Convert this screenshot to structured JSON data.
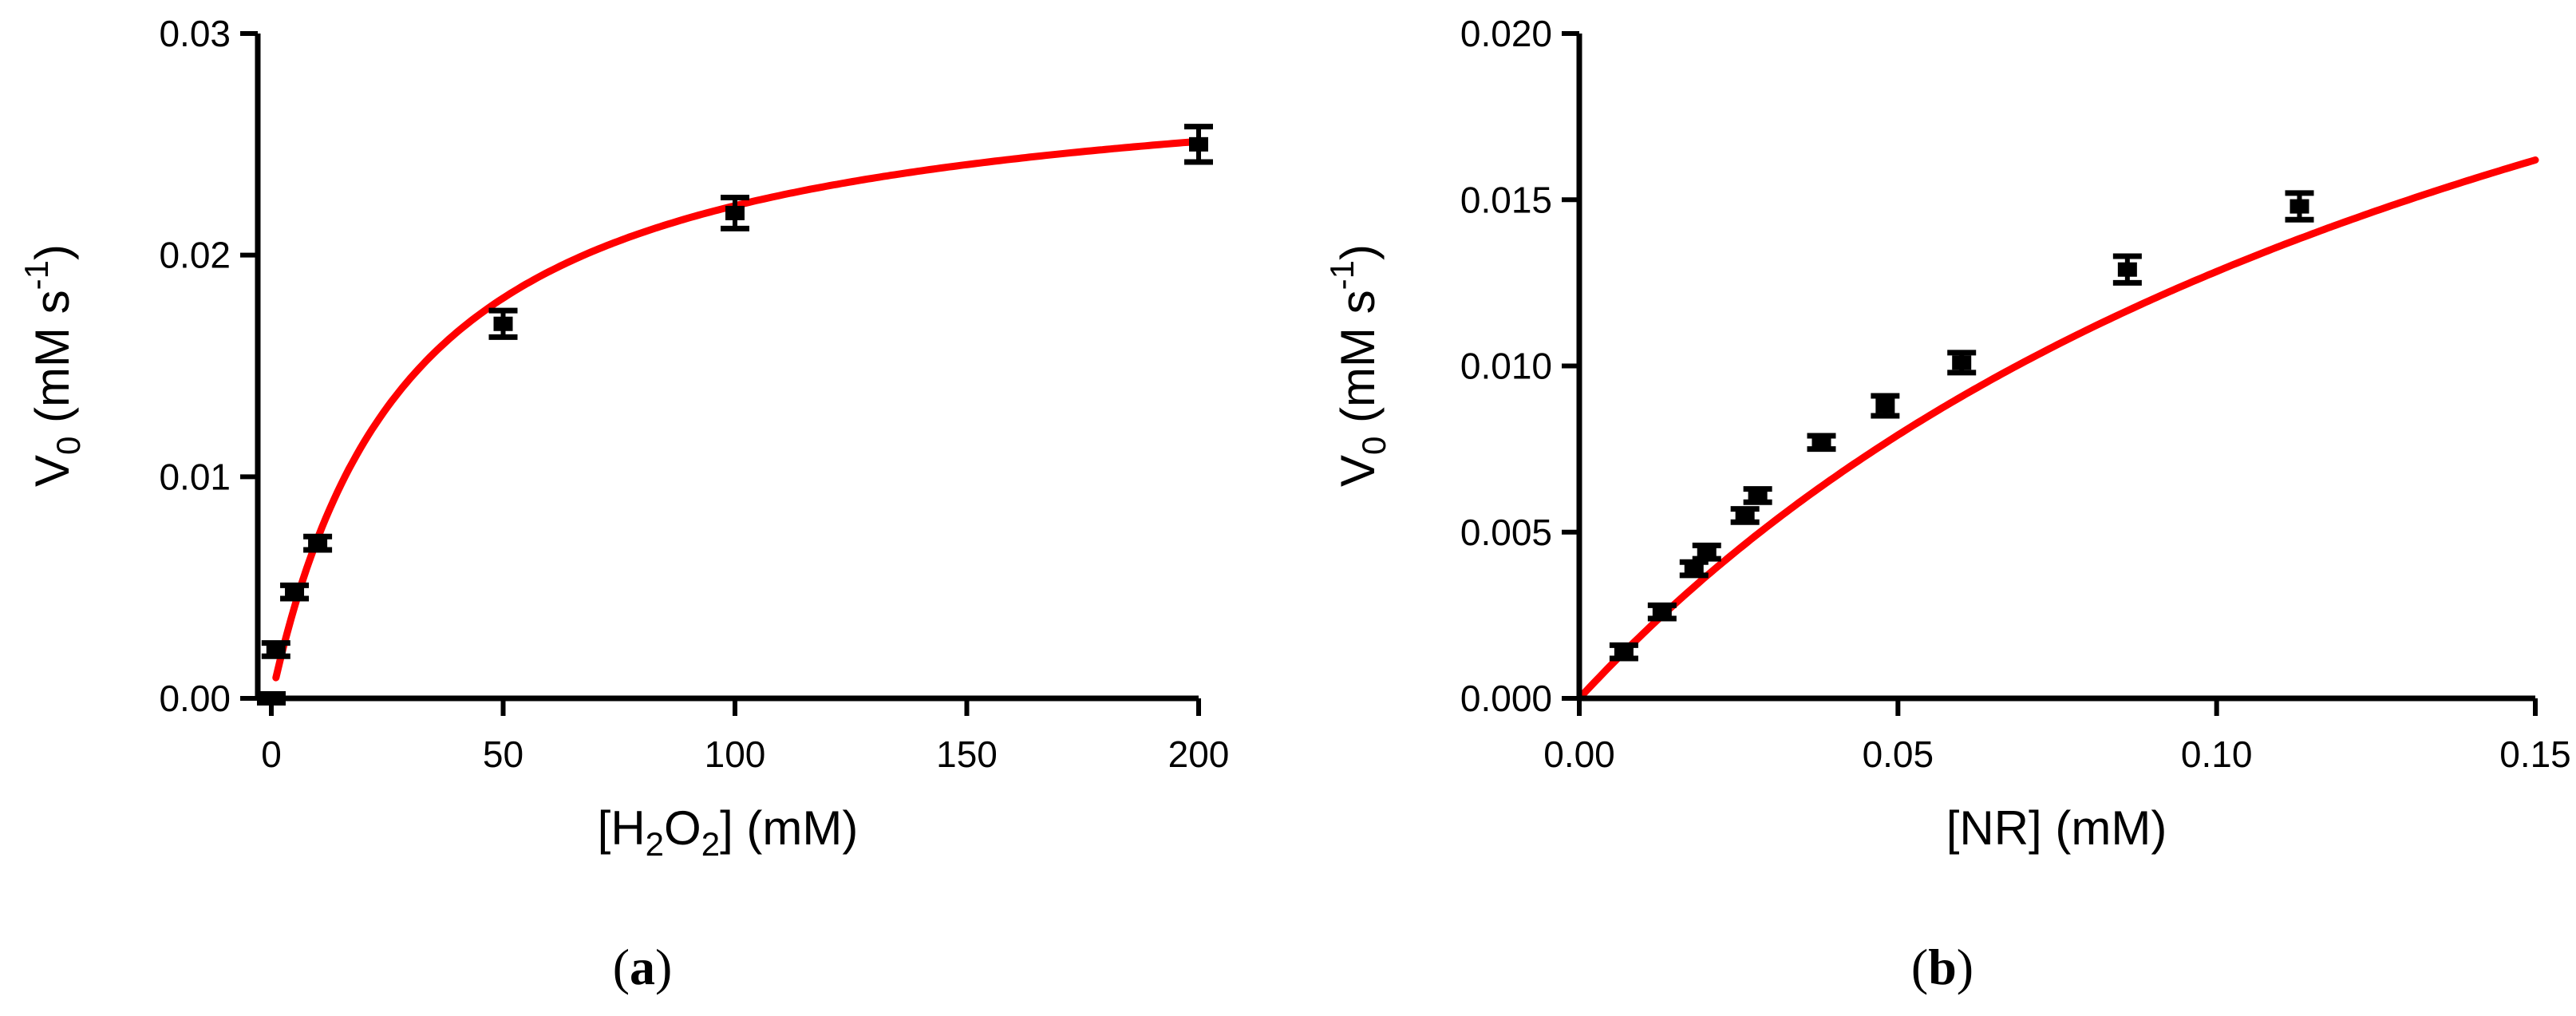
{
  "chart_data": [
    {
      "type": "scatter",
      "panel_label": "a",
      "xlabel": {
        "prefix": "[H",
        "sub1": "2",
        "mid": "O",
        "sub2": "2",
        "suffix": "] (mM)"
      },
      "ylabel": {
        "v": "V",
        "sub": "0",
        "mid": " (mM s",
        "sup": "-1",
        "end": ")"
      },
      "xlim": [
        0,
        200
      ],
      "ylim": [
        0,
        0.03
      ],
      "xticks": [
        "0",
        "50",
        "100",
        "150",
        "200"
      ],
      "yticks": [
        "0.00",
        "0.01",
        "0.02",
        "0.03"
      ],
      "points": [
        {
          "x": 0,
          "y": 0.0,
          "err": 0.0002
        },
        {
          "x": 1,
          "y": 0.0022,
          "err": 0.0003
        },
        {
          "x": 5,
          "y": 0.0048,
          "err": 0.0003
        },
        {
          "x": 10,
          "y": 0.007,
          "err": 0.0003
        },
        {
          "x": 50,
          "y": 0.0169,
          "err": 0.0006
        },
        {
          "x": 100,
          "y": 0.0219,
          "err": 0.0007
        },
        {
          "x": 200,
          "y": 0.025,
          "err": 0.0008
        }
      ],
      "fit": {
        "model": "michaelis-menten",
        "vmax": 0.0289,
        "km": 30,
        "x_start": 1,
        "x_end": 200,
        "color": "#ff0000"
      }
    },
    {
      "type": "scatter",
      "panel_label": "b",
      "xlabel": {
        "prefix": "[NR] (mM)",
        "sub1": "",
        "mid": "",
        "sub2": "",
        "suffix": ""
      },
      "ylabel": {
        "v": "V",
        "sub": "0",
        "mid": " (mM s",
        "sup": "-1",
        "end": ")"
      },
      "xlim": [
        0,
        0.15
      ],
      "ylim": [
        0,
        0.02
      ],
      "xticks": [
        "0.00",
        "0.05",
        "0.10",
        "0.15"
      ],
      "yticks": [
        "0.000",
        "0.005",
        "0.010",
        "0.015",
        "0.020"
      ],
      "points": [
        {
          "x": 0.007,
          "y": 0.0014,
          "err": 0.0002
        },
        {
          "x": 0.013,
          "y": 0.0026,
          "err": 0.0002
        },
        {
          "x": 0.018,
          "y": 0.0039,
          "err": 0.0002
        },
        {
          "x": 0.02,
          "y": 0.0044,
          "err": 0.0002
        },
        {
          "x": 0.026,
          "y": 0.0055,
          "err": 0.0002
        },
        {
          "x": 0.028,
          "y": 0.0061,
          "err": 0.0002
        },
        {
          "x": 0.038,
          "y": 0.0077,
          "err": 0.0002
        },
        {
          "x": 0.048,
          "y": 0.0088,
          "err": 0.0003
        },
        {
          "x": 0.06,
          "y": 0.0101,
          "err": 0.0003
        },
        {
          "x": 0.086,
          "y": 0.0129,
          "err": 0.0004
        },
        {
          "x": 0.113,
          "y": 0.0148,
          "err": 0.0004
        }
      ],
      "fit": {
        "model": "michaelis-menten",
        "vmax": 0.0339,
        "km": 0.164,
        "x_start": 0,
        "x_end": 0.15,
        "color": "#ff0000"
      }
    }
  ]
}
